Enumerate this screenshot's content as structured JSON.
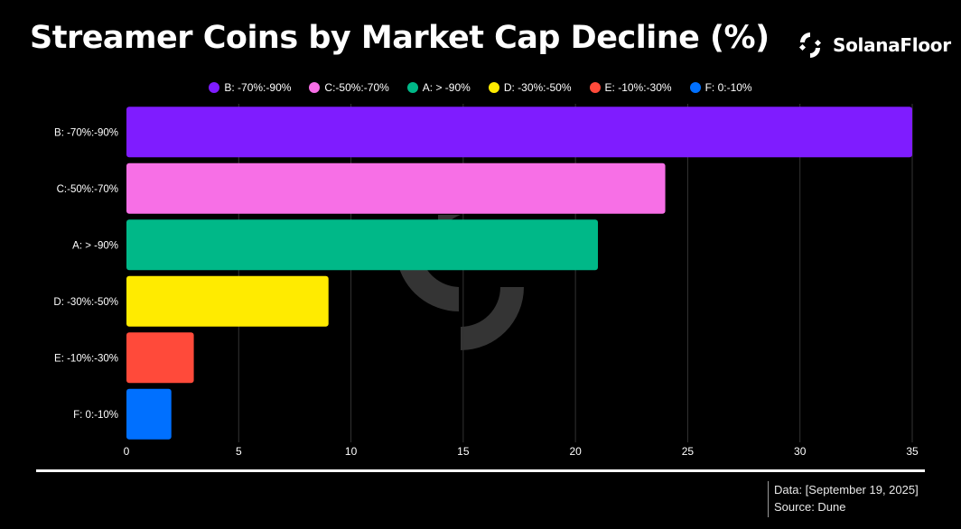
{
  "header": {
    "title": "Streamer Coins by Market Cap Decline (%)",
    "brand": "SolanaFloor"
  },
  "footer": {
    "data_note": "Data: [September 19, 2025]",
    "source": "Source: Dune"
  },
  "colors": {
    "background": "#000000",
    "grid": "#333333",
    "watermark": "#3a3a3a"
  },
  "icons": {
    "brand_logo": "solanafloor-logo-icon",
    "watermark": "solanafloor-watermark-icon"
  },
  "chart_data": {
    "type": "bar",
    "orientation": "horizontal",
    "title": "Streamer Coins by Market Cap Decline (%)",
    "xlabel": "",
    "ylabel": "",
    "categories": [
      "B: -70%:-90%",
      "C:-50%:-70%",
      "A: > -90%",
      "D: -30%:-50%",
      "E: -10%:-30%",
      "F: 0:-10%"
    ],
    "values": [
      35,
      24,
      21,
      9,
      3,
      2
    ],
    "colors": [
      "#7f1cff",
      "#f76fe6",
      "#00b888",
      "#ffeb00",
      "#ff4a3a",
      "#0070ff"
    ],
    "xlim": [
      0,
      35
    ],
    "xticks": [
      0,
      5,
      10,
      15,
      20,
      25,
      30,
      35
    ],
    "grid": true,
    "legend": {
      "position": "top-center",
      "entries": [
        "B: -70%:-90%",
        "C:-50%:-70%",
        "A: > -90%",
        "D: -30%:-50%",
        "E: -10%:-30%",
        "F: 0:-10%"
      ]
    }
  }
}
